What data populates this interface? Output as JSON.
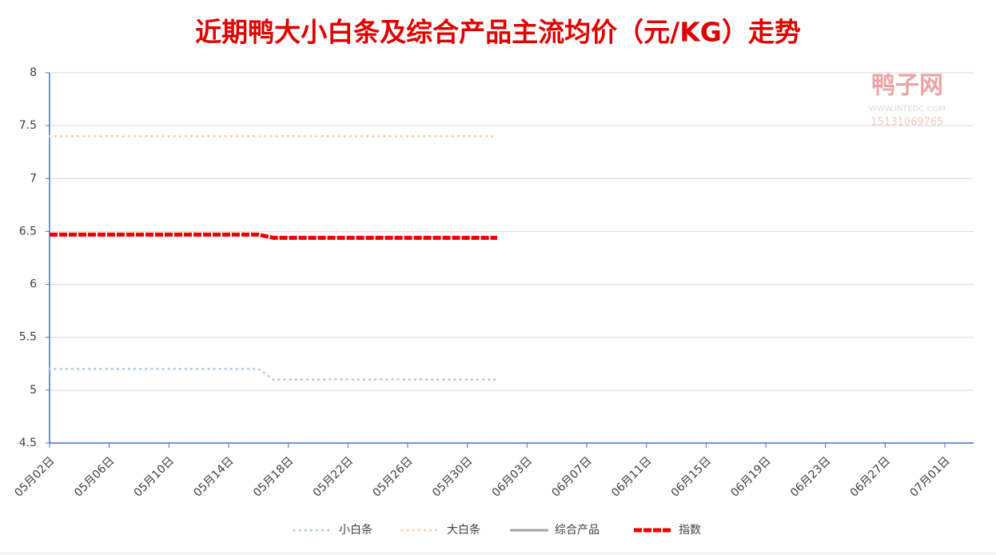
{
  "chart_data": {
    "type": "line",
    "title": "近期鸭大小白条及综合产品主流均价（元/KG）走势",
    "watermark": [
      "鸭子网",
      "WWW.INTEDC.COM",
      "15131069765"
    ],
    "categories": [
      "05月02日",
      null,
      null,
      null,
      "05月06日",
      null,
      null,
      null,
      "05月10日",
      null,
      null,
      null,
      "05月14日",
      null,
      null,
      null,
      "05月18日",
      null,
      null,
      null,
      "05月22日",
      null,
      null,
      null,
      "05月26日",
      null,
      null,
      null,
      "05月30日",
      null,
      null,
      null,
      "06月03日",
      null,
      null,
      null,
      "06月07日",
      null,
      null,
      null,
      "06月11日",
      null,
      null,
      null,
      "06月15日",
      null,
      null,
      null,
      "06月19日",
      null,
      null,
      null,
      "06月23日",
      null,
      null,
      null,
      "06月27日",
      null,
      null,
      null,
      "07月01日"
    ],
    "series": [
      {
        "name": "小白条",
        "color": "#b4c7e7",
        "style": "dotted",
        "values": [
          5.2,
          5.2,
          5.2,
          5.2,
          5.2,
          5.2,
          5.2,
          5.2,
          5.2,
          5.2,
          5.2,
          5.2,
          5.2,
          5.2,
          5.2,
          5.1,
          5.1,
          5.1,
          5.1,
          5.1,
          5.1,
          5.1,
          5.1,
          5.1,
          5.1,
          5.1,
          5.1,
          5.1,
          5.1,
          5.1,
          5.1,
          null,
          null,
          null,
          null,
          null,
          null,
          null,
          null,
          null,
          null,
          null,
          null,
          null,
          null,
          null,
          null,
          null,
          null,
          null,
          null,
          null,
          null,
          null,
          null,
          null,
          null,
          null,
          null,
          null,
          null
        ]
      },
      {
        "name": "大白条",
        "color": "#f8cbad",
        "style": "dotted",
        "values": [
          7.4,
          7.4,
          7.4,
          7.4,
          7.4,
          7.4,
          7.4,
          7.4,
          7.4,
          7.4,
          7.4,
          7.4,
          7.4,
          7.4,
          7.4,
          7.4,
          7.4,
          7.4,
          7.4,
          7.4,
          7.4,
          7.4,
          7.4,
          7.4,
          7.4,
          7.4,
          7.4,
          7.4,
          7.4,
          7.4,
          7.4,
          null,
          null,
          null,
          null,
          null,
          null,
          null,
          null,
          null,
          null,
          null,
          null,
          null,
          null,
          null,
          null,
          null,
          null,
          null,
          null,
          null,
          null,
          null,
          null,
          null,
          null,
          null,
          null,
          null,
          null
        ]
      },
      {
        "name": "综合产品",
        "color": "#a5a5a5",
        "style": "solid",
        "values": [
          null,
          null,
          null,
          null,
          null,
          null,
          null,
          null,
          null,
          null,
          null,
          null,
          null,
          null,
          null,
          null,
          null,
          null,
          null,
          null,
          null,
          null,
          null,
          null,
          null,
          null,
          null,
          null,
          null,
          null,
          null,
          null,
          null,
          null,
          null,
          null,
          null,
          null,
          null,
          null,
          null,
          null,
          null,
          null,
          null,
          null,
          null,
          null,
          null,
          null,
          null,
          null,
          null,
          null,
          null,
          null,
          null,
          null,
          null,
          null,
          null
        ]
      },
      {
        "name": "指数",
        "color": "#ee0000",
        "style": "thick",
        "values": [
          6.47,
          6.47,
          6.47,
          6.47,
          6.47,
          6.47,
          6.47,
          6.47,
          6.47,
          6.47,
          6.47,
          6.47,
          6.47,
          6.47,
          6.47,
          6.44,
          6.44,
          6.44,
          6.44,
          6.44,
          6.44,
          6.44,
          6.44,
          6.44,
          6.44,
          6.44,
          6.44,
          6.44,
          6.44,
          6.44,
          6.44,
          null,
          null,
          null,
          null,
          null,
          null,
          null,
          null,
          null,
          null,
          null,
          null,
          null,
          null,
          null,
          null,
          null,
          null,
          null,
          null,
          null,
          null,
          null,
          null,
          null,
          null,
          null,
          null,
          null,
          null
        ]
      }
    ],
    "ylim": [
      4.5,
      8
    ],
    "yticks": [
      4.5,
      5,
      5.5,
      6,
      6.5,
      7,
      7.5,
      8
    ],
    "grid": true,
    "legend": "bottom"
  }
}
